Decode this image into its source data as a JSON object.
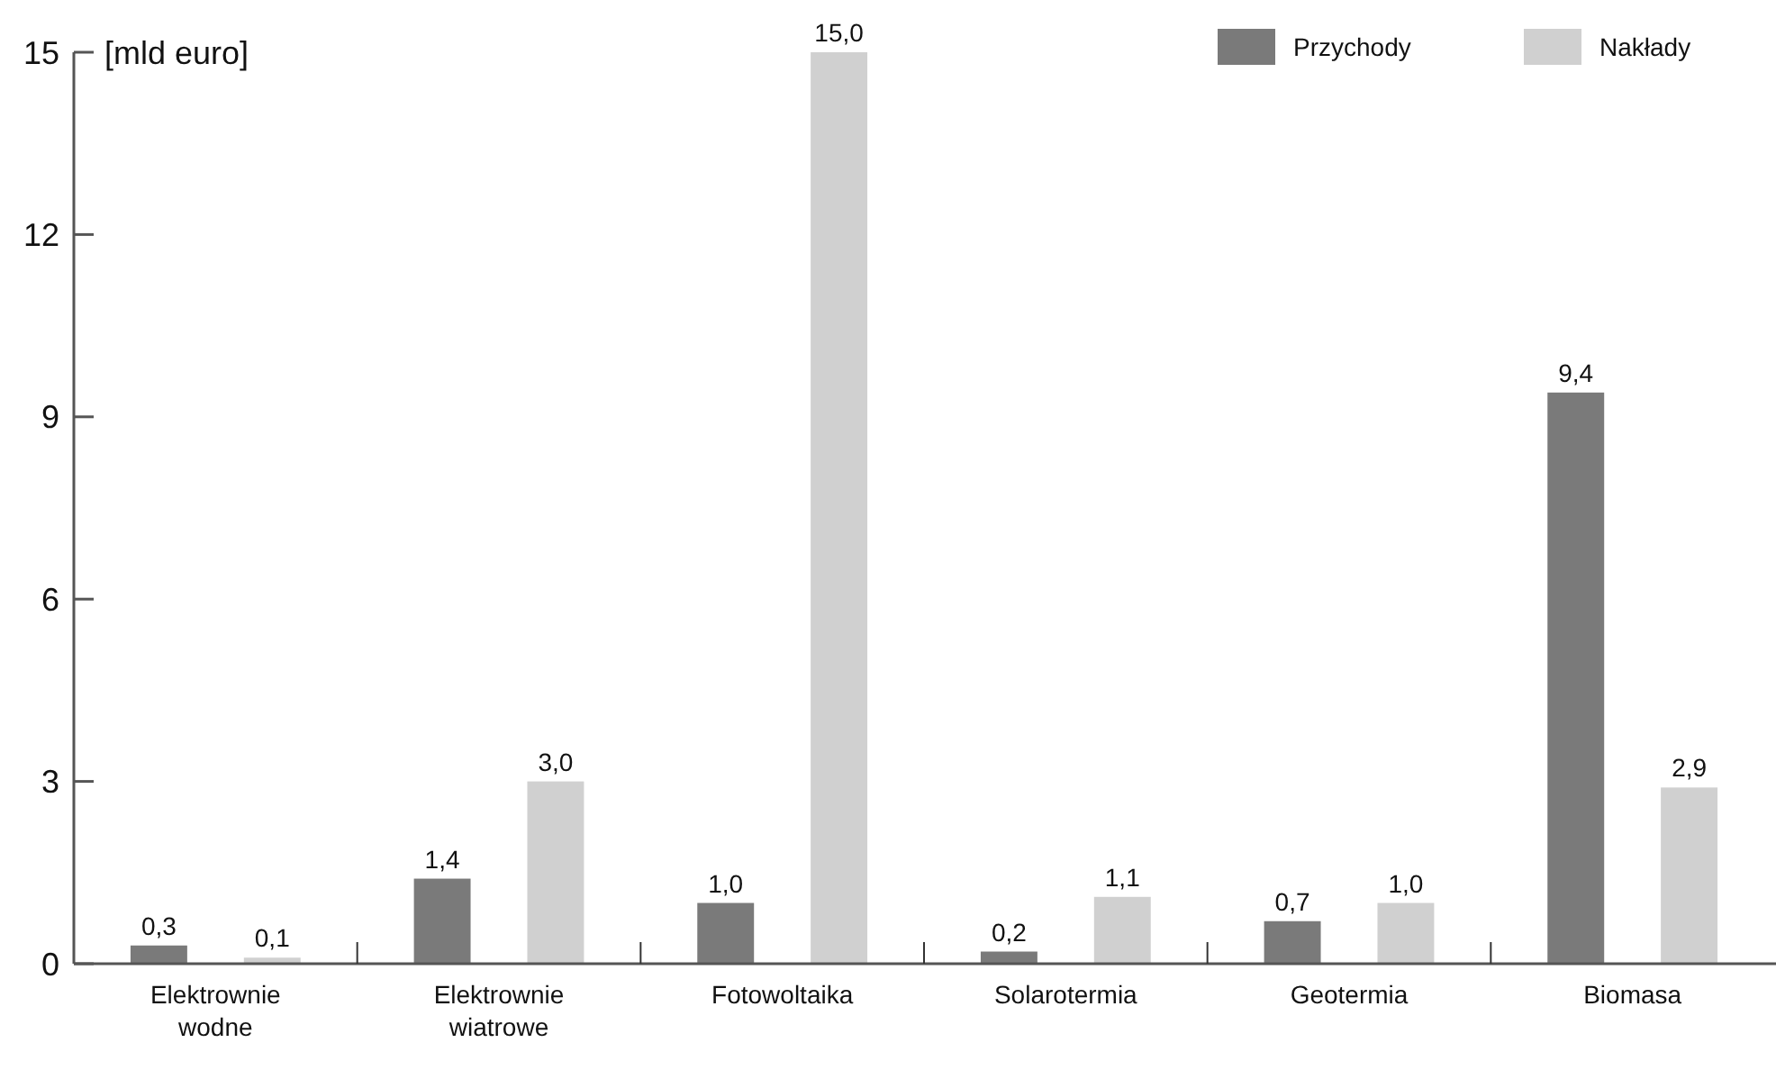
{
  "chart_data": {
    "type": "bar",
    "ylabel": "[mld euro]",
    "categories": [
      "Elektrownie wodne",
      "Elektrownie wiatrowe",
      "Fotowoltaika",
      "Solarotermia",
      "Geotermia",
      "Biomasa"
    ],
    "series": [
      {
        "name": "Przychody",
        "color": "#7a7a7a",
        "values": [
          0.3,
          1.4,
          1.0,
          0.2,
          0.7,
          9.4
        ],
        "value_labels": [
          "0,3",
          "1,4",
          "1,0",
          "0,2",
          "0,7",
          "9,4"
        ]
      },
      {
        "name": "Nakłady",
        "color": "#d0d0d0",
        "values": [
          0.1,
          3.0,
          15.0,
          1.1,
          1.0,
          2.9
        ],
        "value_labels": [
          "0,1",
          "3,0",
          "15,0",
          "1,1",
          "1,0",
          "2,9"
        ]
      }
    ],
    "ylim": [
      0,
      15
    ],
    "yticks": [
      0,
      3,
      6,
      9,
      12,
      15
    ],
    "legend": "top right"
  }
}
